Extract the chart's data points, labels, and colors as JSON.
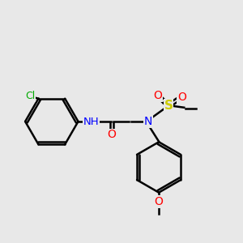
{
  "background_color": "#e8e8e8",
  "atom_colors": {
    "C": "#000000",
    "H": "#006600",
    "N": "#0000ff",
    "O": "#ff0000",
    "S": "#cccc00",
    "Cl": "#00aa00"
  },
  "bond_color": "#000000",
  "bond_width": 1.8,
  "figsize": [
    3.0,
    3.0
  ],
  "dpi": 100
}
